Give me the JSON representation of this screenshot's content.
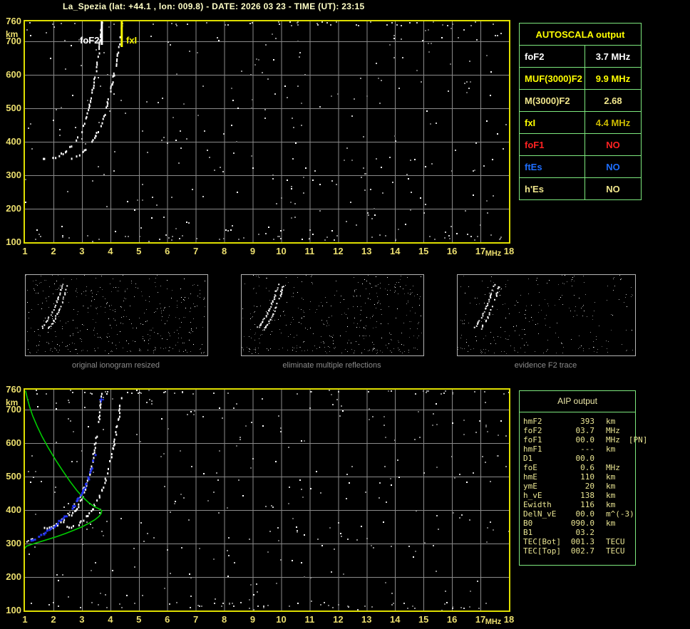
{
  "title": "La_Spezia (lat: +44.1 , lon: 009.8) - DATE: 2026 03 23 - TIME (UT): 23:15",
  "colors": {
    "background": "#000000",
    "plot_border": "#dede00",
    "axis_text": "#ecdf6e",
    "grid": "#8a8a8a",
    "trace_white": "#ffffff",
    "table_border_green": "#7de87d",
    "profile_green": "#00cc00",
    "fit_blue": "#2233f0",
    "title_yellow": "#ffffc6",
    "panel_label_gray": "#8c8c8c"
  },
  "autoscala_table": {
    "header": "AUTOSCALA output",
    "rows": [
      {
        "param": "foF2",
        "value": "3.7 MHz",
        "color": "#ffffff",
        "value_color": "#ffffff"
      },
      {
        "param": "MUF(3000)F2",
        "value": "9.9 MHz",
        "color": "#ffff00",
        "value_color": "#ffff00"
      },
      {
        "param": "M(3000)F2",
        "value": "2.68",
        "color": "#f0e68c",
        "value_color": "#f0e68c"
      },
      {
        "param": "fxI",
        "value": "4.4 MHz",
        "color": "#ffff00",
        "value_color": "#cdbb00"
      },
      {
        "param": "foF1",
        "value": "NO",
        "color": "#ff2222",
        "value_color": "#ff2222"
      },
      {
        "param": "ftEs",
        "value": "NO",
        "color": "#1e6eff",
        "value_color": "#1e6eff"
      },
      {
        "param": "h'Es",
        "value": "NO",
        "color": "#f0e68c",
        "value_color": "#f0e68c"
      }
    ]
  },
  "aip_table": {
    "header": "AIP output",
    "rows": [
      {
        "param": "hmF2",
        "value": "393",
        "unit": "km"
      },
      {
        "param": "foF2",
        "value": "03.7",
        "unit": "MHz"
      },
      {
        "param": "foF1",
        "value": "00.0",
        "unit": "MHz",
        "note": "[PN]"
      },
      {
        "param": "hmF1",
        "value": "---",
        "unit": "km"
      },
      {
        "param": "D1",
        "value": "00.0",
        "unit": ""
      },
      {
        "param": "foE",
        "value": "0.6",
        "unit": "MHz"
      },
      {
        "param": "hmE",
        "value": "110",
        "unit": "km"
      },
      {
        "param": "ymE",
        "value": "20",
        "unit": "km"
      },
      {
        "param": "h_vE",
        "value": "138",
        "unit": "km"
      },
      {
        "param": "Ewidth",
        "value": "116",
        "unit": "km"
      },
      {
        "param": "DelN_vE",
        "value": "00.0",
        "unit": "m^(-3)"
      },
      {
        "param": "B0",
        "value": "090.0",
        "unit": "km"
      },
      {
        "param": "B1",
        "value": "03.2",
        "unit": ""
      },
      {
        "param": "TEC[Bot]",
        "value": "001.3",
        "unit": "TECU"
      },
      {
        "param": "TEC[Top]",
        "value": "002.7",
        "unit": "TECU"
      }
    ]
  },
  "middle_panels": [
    {
      "label": "original ionogram resized",
      "noise": 360
    },
    {
      "label": "eliminate multiple reflections",
      "noise": 330
    },
    {
      "label": "evidence F2 trace",
      "noise": 200
    }
  ],
  "middle_panels_traces": {
    "o": [
      [
        22,
        73
      ],
      [
        25,
        70
      ],
      [
        28,
        66
      ],
      [
        31,
        61
      ],
      [
        34,
        56
      ],
      [
        37,
        50
      ],
      [
        40,
        43
      ],
      [
        43,
        36
      ],
      [
        46,
        28
      ],
      [
        48,
        21
      ],
      [
        50,
        15
      ],
      [
        51,
        11
      ]
    ],
    "x": [
      [
        29,
        77
      ],
      [
        32,
        74
      ],
      [
        35,
        70
      ],
      [
        38,
        65
      ],
      [
        41,
        59
      ],
      [
        44,
        53
      ],
      [
        47,
        46
      ],
      [
        50,
        38
      ],
      [
        53,
        30
      ],
      [
        55,
        23
      ],
      [
        57,
        17
      ],
      [
        58,
        13
      ]
    ]
  },
  "chart_data": [
    {
      "id": "top_ionogram",
      "type": "scatter",
      "xlabel": "MHz",
      "ylabel": "km",
      "xlim": [
        1,
        18
      ],
      "ylim": [
        100,
        760
      ],
      "x_ticks": [
        1,
        2,
        3,
        4,
        5,
        6,
        7,
        8,
        9,
        10,
        11,
        12,
        13,
        14,
        15,
        16,
        17,
        18
      ],
      "y_ticks": [
        760,
        700,
        600,
        500,
        400,
        300,
        200,
        100
      ],
      "grid": true,
      "markers": {
        "foF2": {
          "label": "foF2",
          "freq_MHz": 3.7
        },
        "fxI": {
          "label": "fxI",
          "freq_MHz": 4.4
        }
      },
      "o_trace": [
        [
          1.62,
          352
        ],
        [
          1.75,
          349
        ],
        [
          1.9,
          350
        ],
        [
          2.05,
          355
        ],
        [
          2.2,
          362
        ],
        [
          2.38,
          372
        ],
        [
          2.55,
          385
        ],
        [
          2.72,
          400
        ],
        [
          2.88,
          418
        ],
        [
          3.0,
          440
        ],
        [
          3.1,
          465
        ],
        [
          3.19,
          492
        ],
        [
          3.27,
          520
        ],
        [
          3.34,
          548
        ],
        [
          3.4,
          576
        ],
        [
          3.46,
          604
        ],
        [
          3.51,
          632
        ],
        [
          3.56,
          660
        ],
        [
          3.6,
          688
        ],
        [
          3.63,
          714
        ],
        [
          3.66,
          738
        ],
        [
          3.68,
          756
        ]
      ],
      "x_trace": [
        [
          2.42,
          356
        ],
        [
          2.55,
          352
        ],
        [
          2.7,
          354
        ],
        [
          2.85,
          360
        ],
        [
          3.0,
          370
        ],
        [
          3.15,
          383
        ],
        [
          3.3,
          399
        ],
        [
          3.45,
          418
        ],
        [
          3.58,
          440
        ],
        [
          3.7,
          465
        ],
        [
          3.8,
          492
        ],
        [
          3.89,
          520
        ],
        [
          3.97,
          548
        ],
        [
          4.05,
          578
        ],
        [
          4.12,
          608
        ],
        [
          4.18,
          636
        ],
        [
          4.24,
          664
        ],
        [
          4.29,
          692
        ],
        [
          4.33,
          718
        ],
        [
          4.36,
          740
        ],
        [
          4.38,
          755
        ]
      ]
    },
    {
      "id": "bottom_ionogram",
      "type": "scatter",
      "xlabel": "MHz",
      "ylabel": "km",
      "xlim": [
        1,
        18
      ],
      "ylim": [
        100,
        760
      ],
      "x_ticks": [
        1,
        2,
        3,
        4,
        5,
        6,
        7,
        8,
        9,
        10,
        11,
        12,
        13,
        14,
        15,
        16,
        17,
        18
      ],
      "y_ticks": [
        760,
        700,
        600,
        500,
        400,
        300,
        200,
        100
      ],
      "grid": true,
      "o_trace": [
        [
          1.62,
          352
        ],
        [
          1.75,
          349
        ],
        [
          1.9,
          350
        ],
        [
          2.05,
          355
        ],
        [
          2.2,
          362
        ],
        [
          2.38,
          372
        ],
        [
          2.55,
          385
        ],
        [
          2.72,
          400
        ],
        [
          2.88,
          418
        ],
        [
          3.0,
          440
        ],
        [
          3.1,
          465
        ],
        [
          3.19,
          492
        ],
        [
          3.27,
          520
        ],
        [
          3.34,
          548
        ],
        [
          3.4,
          576
        ],
        [
          3.46,
          604
        ],
        [
          3.51,
          632
        ],
        [
          3.56,
          660
        ],
        [
          3.6,
          688
        ],
        [
          3.63,
          714
        ],
        [
          3.66,
          738
        ],
        [
          3.68,
          756
        ]
      ],
      "x_trace": [
        [
          2.42,
          356
        ],
        [
          2.55,
          352
        ],
        [
          2.7,
          354
        ],
        [
          2.85,
          360
        ],
        [
          3.0,
          370
        ],
        [
          3.15,
          383
        ],
        [
          3.3,
          399
        ],
        [
          3.45,
          418
        ],
        [
          3.58,
          440
        ],
        [
          3.7,
          465
        ],
        [
          3.8,
          492
        ],
        [
          3.89,
          520
        ],
        [
          3.97,
          548
        ],
        [
          4.05,
          578
        ],
        [
          4.12,
          608
        ],
        [
          4.18,
          636
        ],
        [
          4.24,
          664
        ],
        [
          4.29,
          692
        ],
        [
          4.33,
          718
        ],
        [
          4.36,
          740
        ],
        [
          4.38,
          755
        ]
      ],
      "autoscaled_trace_blue": [
        [
          1.05,
          310
        ],
        [
          1.18,
          313
        ],
        [
          1.32,
          318
        ],
        [
          1.48,
          325
        ],
        [
          1.65,
          333
        ],
        [
          1.82,
          343
        ],
        [
          2.0,
          355
        ],
        [
          2.18,
          368
        ],
        [
          2.35,
          382
        ],
        [
          2.52,
          397
        ],
        [
          2.68,
          413
        ],
        [
          2.83,
          432
        ],
        [
          2.97,
          453
        ],
        [
          3.1,
          477
        ],
        [
          3.22,
          503
        ],
        [
          3.32,
          530
        ],
        [
          3.4,
          556
        ],
        [
          3.46,
          580
        ]
      ],
      "foF2_point_blue": [
        3.68,
        730
      ],
      "density_profile_green": [
        [
          1.02,
          757
        ],
        [
          1.08,
          735
        ],
        [
          1.16,
          710
        ],
        [
          1.27,
          682
        ],
        [
          1.42,
          652
        ],
        [
          1.6,
          620
        ],
        [
          1.82,
          586
        ],
        [
          2.07,
          551
        ],
        [
          2.33,
          517
        ],
        [
          2.58,
          486
        ],
        [
          2.82,
          459
        ],
        [
          3.05,
          437
        ],
        [
          3.27,
          420
        ],
        [
          3.47,
          409
        ],
        [
          3.62,
          403
        ],
        [
          3.7,
          398
        ],
        [
          3.68,
          390
        ],
        [
          3.6,
          381
        ],
        [
          3.45,
          371
        ],
        [
          3.25,
          361
        ],
        [
          3.0,
          350
        ],
        [
          2.72,
          340
        ],
        [
          2.42,
          330
        ],
        [
          2.12,
          321
        ],
        [
          1.82,
          313
        ],
        [
          1.52,
          305
        ],
        [
          1.25,
          298
        ],
        [
          1.05,
          292
        ],
        [
          0.97,
          283
        ],
        [
          0.95,
          268
        ]
      ]
    }
  ]
}
